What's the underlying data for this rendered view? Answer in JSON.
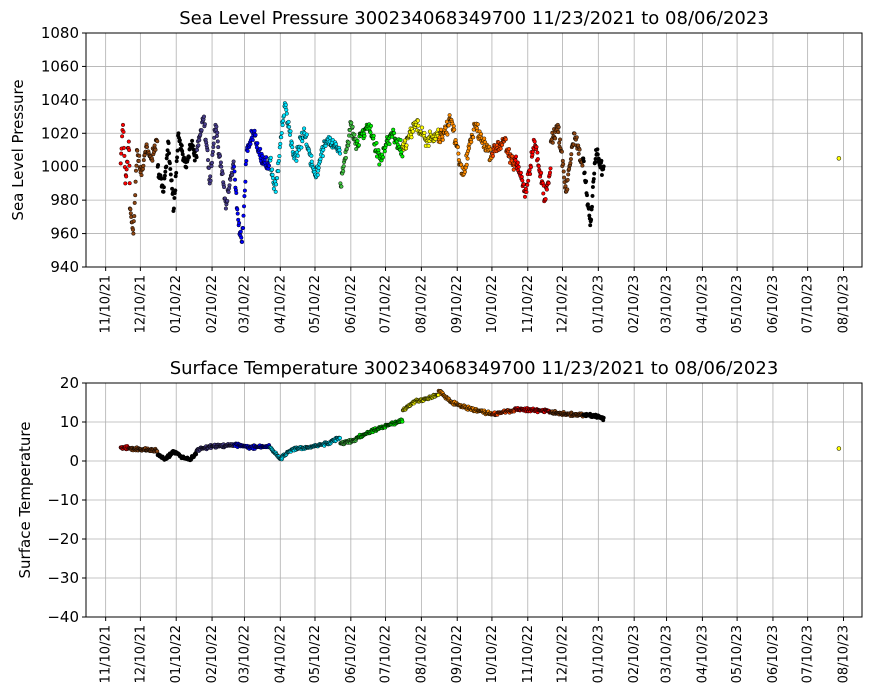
{
  "chart_data": [
    {
      "type": "scatter",
      "title": "Sea Level Pressure 300234068349700  11/23/2021 to 08/06/2023",
      "xlabel": "",
      "ylabel": "Sea Level Pressure",
      "ylim": [
        940,
        1080
      ],
      "yticks": [
        940,
        960,
        980,
        1000,
        1020,
        1040,
        1060,
        1080
      ],
      "xticks": [
        "11/10/21",
        "12/10/21",
        "01/10/22",
        "02/10/22",
        "03/10/22",
        "04/10/22",
        "05/10/22",
        "06/10/22",
        "07/10/22",
        "08/10/22",
        "09/10/22",
        "10/10/22",
        "11/10/22",
        "12/10/22",
        "01/10/23",
        "02/10/23",
        "03/10/23",
        "04/10/23",
        "05/10/23",
        "06/10/23",
        "07/10/23",
        "08/10/23"
      ],
      "xlim": [
        "10/24/21",
        "08/26/23"
      ],
      "grid": true,
      "series": [
        {
          "color": "#ff0000",
          "x_range": [
            "11/23/21",
            "12/01/21"
          ],
          "points": [
            [
              "11/23/21",
              1002
            ],
            [
              "11/25/21",
              1025
            ],
            [
              "11/27/21",
              990
            ],
            [
              "11/30/21",
              1015
            ],
            [
              "12/01/21",
              985
            ]
          ]
        },
        {
          "color": "#8b4513",
          "x_range": [
            "12/01/21",
            "12/25/21"
          ],
          "points": [
            [
              "12/01/21",
              975
            ],
            [
              "12/04/21",
              960
            ],
            [
              "12/07/21",
              1010
            ],
            [
              "12/11/21",
              995
            ],
            [
              "12/15/21",
              1012
            ],
            [
              "12/20/21",
              1005
            ],
            [
              "12/25/21",
              1015
            ]
          ]
        },
        {
          "color": "#000000",
          "x_range": [
            "12/25/21",
            "01/28/22"
          ],
          "points": [
            [
              "12/25/21",
              1000
            ],
            [
              "12/30/21",
              985
            ],
            [
              "01/03/22",
              1015
            ],
            [
              "01/08/22",
              975
            ],
            [
              "01/12/22",
              1020
            ],
            [
              "01/18/22",
              1000
            ],
            [
              "01/23/22",
              1012
            ],
            [
              "01/28/22",
              1005
            ]
          ]
        },
        {
          "color": "#483d8b",
          "x_range": [
            "01/28/22",
            "03/01/22"
          ],
          "points": [
            [
              "01/28/22",
              1010
            ],
            [
              "02/03/22",
              1030
            ],
            [
              "02/08/22",
              990
            ],
            [
              "02/13/22",
              1025
            ],
            [
              "02/18/22",
              1000
            ],
            [
              "02/22/22",
              975
            ],
            [
              "03/01/22",
              1005
            ]
          ]
        },
        {
          "color": "#0000ff",
          "x_range": [
            "03/01/22",
            "04/01/22"
          ],
          "points": [
            [
              "03/01/22",
              1000
            ],
            [
              "03/05/22",
              965
            ],
            [
              "03/08/22",
              955
            ],
            [
              "03/12/22",
              1010
            ],
            [
              "03/18/22",
              1020
            ],
            [
              "03/24/22",
              1005
            ],
            [
              "04/01/22",
              1000
            ]
          ]
        },
        {
          "color": "#00e5ff",
          "x_range": [
            "04/01/22",
            "06/01/22"
          ],
          "points": [
            [
              "04/01/22",
              1005
            ],
            [
              "04/06/22",
              985
            ],
            [
              "04/14/22",
              1038
            ],
            [
              "04/22/22",
              1005
            ],
            [
              "05/01/22",
              1020
            ],
            [
              "05/10/22",
              995
            ],
            [
              "05/20/22",
              1015
            ],
            [
              "06/01/22",
              1010
            ]
          ]
        },
        {
          "color": "#44c244",
          "x_range": [
            "06/01/22",
            "06/15/22"
          ],
          "points": [
            [
              "06/01/22",
              990
            ],
            [
              "06/05/22",
              1005
            ],
            [
              "06/10/22",
              1025
            ],
            [
              "06/15/22",
              1012
            ]
          ]
        },
        {
          "color": "#00ee00",
          "x_range": [
            "06/15/22",
            "07/25/22"
          ],
          "points": [
            [
              "06/15/22",
              1015
            ],
            [
              "06/25/22",
              1025
            ],
            [
              "07/05/22",
              1005
            ],
            [
              "07/15/22",
              1020
            ],
            [
              "07/25/22",
              1010
            ]
          ]
        },
        {
          "color": "#ffff00",
          "x_range": [
            "07/25/22",
            "08/25/22"
          ],
          "points": [
            [
              "07/25/22",
              1012
            ],
            [
              "08/05/22",
              1025
            ],
            [
              "08/15/22",
              1015
            ],
            [
              "08/25/22",
              1020
            ]
          ]
        },
        {
          "color": "#ff8c00",
          "x_range": [
            "08/25/22",
            "10/10/22"
          ],
          "points": [
            [
              "08/25/22",
              1015
            ],
            [
              "09/05/22",
              1028
            ],
            [
              "09/15/22",
              995
            ],
            [
              "09/25/22",
              1025
            ],
            [
              "10/10/22",
              1005
            ]
          ]
        },
        {
          "color": "#ff4500",
          "x_range": [
            "10/10/22",
            "10/30/22"
          ],
          "points": [
            [
              "10/10/22",
              1008
            ],
            [
              "10/20/22",
              1015
            ],
            [
              "10/30/22",
              1000
            ]
          ]
        },
        {
          "color": "#ff0000",
          "x_range": [
            "10/30/22",
            "11/30/22"
          ],
          "points": [
            [
              "10/30/22",
              1005
            ],
            [
              "11/08/22",
              985
            ],
            [
              "11/16/22",
              1015
            ],
            [
              "11/25/22",
              980
            ],
            [
              "11/30/22",
              1000
            ]
          ]
        },
        {
          "color": "#8b4513",
          "x_range": [
            "11/30/22",
            "12/28/22"
          ],
          "points": [
            [
              "11/30/22",
              1015
            ],
            [
              "12/06/22",
              1025
            ],
            [
              "12/13/22",
              985
            ],
            [
              "12/20/22",
              1020
            ],
            [
              "12/28/22",
              1000
            ]
          ]
        },
        {
          "color": "#000000",
          "x_range": [
            "12/28/22",
            "01/15/23"
          ],
          "points": [
            [
              "12/28/22",
              1005
            ],
            [
              "01/03/23",
              965
            ],
            [
              "01/08/23",
              1010
            ],
            [
              "01/15/23",
              995
            ]
          ]
        },
        {
          "color": "#ffff00",
          "x_range": [
            "08/06/23",
            "08/06/23"
          ],
          "points": [
            [
              "08/06/23",
              1005
            ]
          ]
        }
      ]
    },
    {
      "type": "scatter",
      "title": "Surface Temperature 300234068349700  11/23/2021 to 08/06/2023",
      "xlabel": "",
      "ylabel": "Surface Temperature",
      "ylim": [
        -40,
        20
      ],
      "yticks": [
        -40,
        -30,
        -20,
        -10,
        0,
        10,
        20
      ],
      "xticks": [
        "11/10/21",
        "12/10/21",
        "01/10/22",
        "02/10/22",
        "03/10/22",
        "04/10/22",
        "05/10/22",
        "06/10/22",
        "07/10/22",
        "08/10/22",
        "09/10/22",
        "10/10/22",
        "11/10/22",
        "12/10/22",
        "01/10/23",
        "02/10/23",
        "03/10/23",
        "04/10/23",
        "05/10/23",
        "06/10/23",
        "07/10/23",
        "08/10/23"
      ],
      "xlim": [
        "10/24/21",
        "08/26/23"
      ],
      "grid": true,
      "series": [
        {
          "color": "#ff0000",
          "x_range": [
            "11/23/21",
            "12/01/21"
          ],
          "points": [
            [
              "11/23/21",
              3.5
            ],
            [
              "12/01/21",
              3.3
            ]
          ]
        },
        {
          "color": "#8b4513",
          "x_range": [
            "12/01/21",
            "12/25/21"
          ],
          "points": [
            [
              "12/01/21",
              3.2
            ],
            [
              "12/12/21",
              3.0
            ],
            [
              "12/25/21",
              2.6
            ]
          ]
        },
        {
          "color": "#000000",
          "x_range": [
            "12/25/21",
            "01/28/22"
          ],
          "points": [
            [
              "12/25/21",
              1.5
            ],
            [
              "01/01/22",
              0.5
            ],
            [
              "01/08/22",
              2.5
            ],
            [
              "01/15/22",
              1.0
            ],
            [
              "01/22/22",
              0.2
            ],
            [
              "01/28/22",
              2.5
            ]
          ]
        },
        {
          "color": "#483d8b",
          "x_range": [
            "01/28/22",
            "03/01/22"
          ],
          "points": [
            [
              "01/28/22",
              2.8
            ],
            [
              "02/10/22",
              3.8
            ],
            [
              "03/01/22",
              4.0
            ]
          ]
        },
        {
          "color": "#0000ff",
          "x_range": [
            "03/01/22",
            "04/01/22"
          ],
          "points": [
            [
              "03/01/22",
              4.2
            ],
            [
              "03/15/22",
              3.5
            ],
            [
              "04/01/22",
              3.8
            ]
          ]
        },
        {
          "color": "#00e5ff",
          "x_range": [
            "04/01/22",
            "06/01/22"
          ],
          "points": [
            [
              "04/01/22",
              3.5
            ],
            [
              "04/10/22",
              0.5
            ],
            [
              "04/20/22",
              3.0
            ],
            [
              "05/05/22",
              3.5
            ],
            [
              "05/20/22",
              4.5
            ],
            [
              "06/01/22",
              6.0
            ]
          ]
        },
        {
          "color": "#44c244",
          "x_range": [
            "06/01/22",
            "06/15/22"
          ],
          "points": [
            [
              "06/01/22",
              4.5
            ],
            [
              "06/15/22",
              5.5
            ]
          ]
        },
        {
          "color": "#00ee00",
          "x_range": [
            "06/15/22",
            "07/25/22"
          ],
          "points": [
            [
              "06/15/22",
              6.0
            ],
            [
              "07/05/22",
              8.5
            ],
            [
              "07/25/22",
              10.5
            ]
          ]
        },
        {
          "color": "#ffff00",
          "x_range": [
            "07/25/22",
            "08/25/22"
          ],
          "points": [
            [
              "07/25/22",
              13.0
            ],
            [
              "08/05/22",
              15.5
            ],
            [
              "08/15/22",
              16.0
            ],
            [
              "08/25/22",
              17.0
            ]
          ]
        },
        {
          "color": "#ff8c00",
          "x_range": [
            "08/25/22",
            "10/10/22"
          ],
          "points": [
            [
              "08/25/22",
              18.0
            ],
            [
              "09/05/22",
              15.0
            ],
            [
              "09/20/22",
              13.5
            ],
            [
              "10/10/22",
              12.0
            ]
          ]
        },
        {
          "color": "#ff4500",
          "x_range": [
            "10/10/22",
            "10/30/22"
          ],
          "points": [
            [
              "10/10/22",
              12.0
            ],
            [
              "10/30/22",
              13.0
            ]
          ]
        },
        {
          "color": "#ff0000",
          "x_range": [
            "10/30/22",
            "11/30/22"
          ],
          "points": [
            [
              "10/30/22",
              13.5
            ],
            [
              "11/15/22",
              13.0
            ],
            [
              "11/30/22",
              12.8
            ]
          ]
        },
        {
          "color": "#8b4513",
          "x_range": [
            "11/30/22",
            "12/28/22"
          ],
          "points": [
            [
              "11/30/22",
              12.5
            ],
            [
              "12/15/22",
              12.0
            ],
            [
              "12/28/22",
              11.8
            ]
          ]
        },
        {
          "color": "#000000",
          "x_range": [
            "12/28/22",
            "01/15/23"
          ],
          "points": [
            [
              "12/28/22",
              11.8
            ],
            [
              "01/08/23",
              11.5
            ],
            [
              "01/15/23",
              10.8
            ]
          ]
        },
        {
          "color": "#ffff00",
          "x_range": [
            "08/06/23",
            "08/06/23"
          ],
          "points": [
            [
              "08/06/23",
              3.2
            ]
          ]
        }
      ]
    }
  ]
}
